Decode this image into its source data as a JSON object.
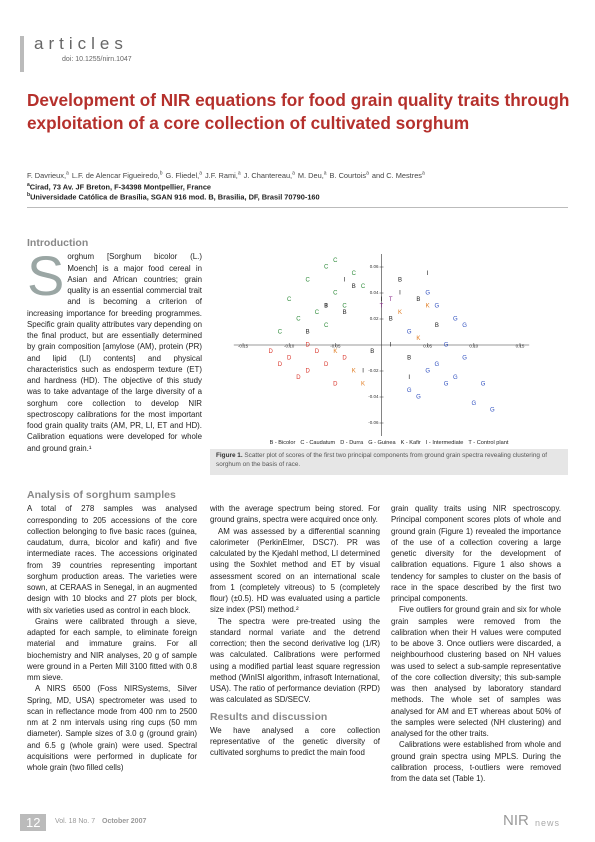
{
  "header": {
    "section": "articles",
    "doi": "doi: 10.1255/nirn.1047"
  },
  "title": "Development of NIR equations for food grain quality traits through exploitation of a core collection of cultivated sorghum",
  "authors": [
    {
      "name": "F. Davrieux,",
      "aff": "a"
    },
    {
      "name": "L.F. de Alencar Figueiredo,",
      "aff": "b"
    },
    {
      "name": "G. Fliedel,",
      "aff": "a"
    },
    {
      "name": "J.F. Rami,",
      "aff": "a"
    },
    {
      "name": "J. Chantereau,",
      "aff": "a"
    },
    {
      "name": "M. Deu,",
      "aff": "a"
    },
    {
      "name": "B. Courtois",
      "aff": "a"
    },
    {
      "name": "and C. Mestres",
      "aff": "a"
    }
  ],
  "affiliations": [
    {
      "mark": "a",
      "text": "Cirad, 73 Av. JF Breton, F-34398 Montpellier, France"
    },
    {
      "mark": "b",
      "text": "Universidade Católica de Brasília, SGAN 916 mod. B, Brasilia, DF, Brasil 70790-160"
    }
  ],
  "introduction": {
    "heading": "Introduction",
    "dropcap": "S",
    "text": "orghum [Sorghum bicolor (L.) Moench] is a major food cereal in Asian and African countries; grain quality is an essential commercial trait and is becoming a criterion of increasing importance for breeding programmes. Specific grain quality attributes vary depending on the final product, but are essentially determined by grain composition [amylose (AM), protein (PR) and lipid (LI) contents] and physical characteristics such as endosperm texture (ET) and hardness (HD). The objective of this study was to take advantage of the large diversity of a sorghum core collection to develop NIR spectroscopy calibrations for the most important food grain quality traits (AM, PR, LI, ET and HD). Calibration equations were developed for whole and ground grain.¹"
  },
  "figure": {
    "type": "scatter",
    "xlim": [
      -0.16,
      0.16
    ],
    "ylim": [
      -0.07,
      0.07
    ],
    "xticks": [
      {
        "value": -0.15,
        "label": "-0.15"
      },
      {
        "value": -0.1,
        "label": "-0.10"
      },
      {
        "value": -0.05,
        "label": "-0.05"
      },
      {
        "value": 0.05,
        "label": "0.05"
      },
      {
        "value": 0.1,
        "label": "0.10"
      },
      {
        "value": 0.15,
        "label": "0.15"
      }
    ],
    "yticks": [
      0.06,
      0.04,
      0.02,
      -0.02,
      -0.04,
      -0.06
    ],
    "series": [
      {
        "name": "B - Bicolor",
        "marker": "B",
        "color": "#222222",
        "x": [
          -0.06,
          -0.03,
          0.01,
          0.04,
          -0.08,
          0.02,
          -0.01,
          0.06,
          -0.04,
          0.03
        ],
        "y": [
          0.03,
          0.045,
          0.02,
          0.035,
          0.01,
          0.05,
          -0.005,
          0.015,
          0.025,
          -0.01
        ]
      },
      {
        "name": "C - Caudatum",
        "marker": "C",
        "color": "#2e8b3a",
        "x": [
          -0.1,
          -0.08,
          -0.06,
          -0.05,
          -0.03,
          -0.07,
          -0.09,
          -0.02,
          -0.04,
          -0.06,
          -0.11,
          -0.05
        ],
        "y": [
          0.035,
          0.05,
          0.06,
          0.04,
          0.055,
          0.025,
          0.02,
          0.045,
          0.03,
          0.015,
          0.01,
          0.065
        ]
      },
      {
        "name": "D - Durra",
        "marker": "D",
        "color": "#d9352b",
        "x": [
          -0.1,
          -0.08,
          -0.07,
          -0.09,
          -0.06,
          -0.05,
          -0.11,
          -0.04,
          -0.08,
          -0.12
        ],
        "y": [
          -0.01,
          -0.02,
          -0.005,
          -0.025,
          -0.015,
          -0.03,
          -0.015,
          -0.01,
          0.0,
          -0.005
        ]
      },
      {
        "name": "G - Guinea",
        "marker": "G",
        "color": "#3050c0",
        "x": [
          0.03,
          0.05,
          0.07,
          0.08,
          0.06,
          0.09,
          0.04,
          0.1,
          0.05,
          0.07,
          0.08,
          0.11,
          0.06,
          0.09,
          0.03,
          0.12
        ],
        "y": [
          0.01,
          -0.02,
          -0.03,
          0.02,
          0.03,
          -0.01,
          -0.04,
          -0.045,
          0.04,
          0.0,
          -0.025,
          -0.03,
          -0.015,
          0.015,
          -0.035,
          -0.05
        ]
      },
      {
        "name": "K - Kafir",
        "marker": "K",
        "color": "#e07a1f",
        "x": [
          -0.05,
          -0.03,
          0.02,
          0.04,
          -0.02,
          0.05
        ],
        "y": [
          -0.005,
          -0.02,
          0.025,
          0.005,
          -0.03,
          0.03
        ]
      },
      {
        "name": "I - Intermediate",
        "marker": "I",
        "color": "#111111",
        "x": [
          -0.04,
          0.0,
          0.02,
          -0.02,
          0.05,
          0.01,
          -0.06,
          0.03
        ],
        "y": [
          0.05,
          0.035,
          0.04,
          -0.02,
          0.055,
          0.0,
          0.03,
          -0.025
        ]
      },
      {
        "name": "T - Control plant",
        "marker": "T",
        "color": "#8a2a8a",
        "x": [
          0.0,
          0.01
        ],
        "y": [
          0.03,
          0.035
        ]
      }
    ],
    "label": "Figure 1.",
    "caption": "Scatter plot of scores of the first two principal components from ground grain spectra revealing clustering of sorghum on the basis of race."
  },
  "columns": [
    [
      {
        "heading": "Analysis of sorghum samples"
      },
      {
        "paragraph": "A total of 278 samples was analysed corresponding to 205 accessions of the core collection belonging to five basic races (guinea, caudatum, durra, bicolor and kafir) and five intermediate races. The accessions originated from 39 countries representing important sorghum production areas. The varieties were sown, at CERAAS in Senegal, in an augmented design with 10 blocks and 27 plots per block, with six varieties used as control in each block."
      },
      {
        "paragraph": "Grains were calibrated through a sieve, adapted for each sample, to eliminate foreign material and immature grains. For all biochemistry and NIR analyses, 20 g of sample were ground in a Perten Mill 3100 fitted with 0.8 mm sieve."
      },
      {
        "paragraph": "A NIRS 6500 (Foss NIRSystems, Silver Spring, MD, USA) spectrometer was used to scan in reflectance mode from 400 nm to 2500 nm at 2 nm intervals using ring cups (50 mm diameter). Sample sizes of 3.0 g (ground grain) and 6.5 g (whole grain) were used. Spectral acquisitions were performed in duplicate for whole grain (two filled cells)"
      }
    ],
    [
      {
        "paragraph": "with the average spectrum being stored. For ground grains, spectra were acquired once only."
      },
      {
        "paragraph": "AM was assessed by a differential scanning calorimeter (PerkinElmer, DSC7). PR was calculated by the Kjedahl method, LI determined using the Soxhlet method and ET by visual assessment scored on an international scale from 1 (completely vitreous) to 5 (completely flour) (±0.5). HD was evaluated using a particle size index (PSI) method.²"
      },
      {
        "paragraph": "The spectra were pre-treated using the standard normal variate and the detrend correction; then the second derivative log (1/R) was calculated. Calibrations were performed using a modified partial least square regression method (WinISI algorithm, infrasoft International, USA). The ratio of performance deviation (RPD) was calculated as SD/SECV."
      },
      {
        "heading": "Results and discussion"
      },
      {
        "paragraph": "We have analysed a core collection representative of the genetic diversity of cultivated sorghums to predict the main food"
      }
    ],
    [
      {
        "paragraph": "grain quality traits using NIR spectroscopy. Principal component scores plots of whole and ground grain (Figure 1) revealed the importance of the use of a collection covering a large genetic diversity for the development of calibration equations. Figure 1 also shows a tendency for samples to cluster on the basis of race in the space described by the first two principal components."
      },
      {
        "paragraph": "Five outliers for ground grain and six for whole grain samples were removed from the calibration when their H values were computed to be above 3. Once outliers were discarded, a neighbourhood clustering based on NH values was used to select a sub-sample representative of the core collection diversity; this sub-sample was then analysed by laboratory standard methods. The whole set of samples was analysed for AM and ET whereas about 50% of the samples were selected (NH clustering) and analysed for the other traits."
      },
      {
        "paragraph": "Calibrations were established from whole and ground grain spectra using MPLS. During the calibration process, t-outliers were removed from the data set (Table 1)."
      }
    ]
  ],
  "footer": {
    "page": "12",
    "issue": "Vol. 18 No. 7",
    "date": "October 2007",
    "brand": "NIR",
    "brand2": "news"
  }
}
